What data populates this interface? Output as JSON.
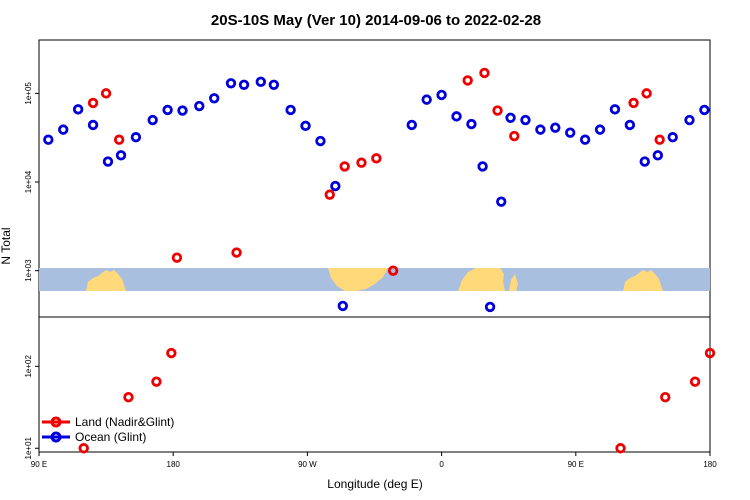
{
  "chart_data": {
    "type": "scatter",
    "title": "20S-10S May (Ver 10)   2014-09-06 to 2022-02-28",
    "xlabel": "Longitude (deg E)",
    "ylabel": "N Total",
    "xlim": [
      90,
      270
    ],
    "x_ticks": [
      {
        "value": 90,
        "label": "90 E"
      },
      {
        "value": 126,
        "label": "180"
      },
      {
        "value": 162,
        "label": "90 W"
      },
      {
        "value": 198,
        "label": "0"
      },
      {
        "value": 234,
        "label": "90 E"
      },
      {
        "value": 270,
        "label": "180"
      }
    ],
    "top_panel": {
      "scale": "log",
      "ylim": [
        300,
        400000
      ],
      "y_ticks": [
        {
          "value": 1000,
          "label": "1e+03"
        },
        {
          "value": 10000,
          "label": "1e+04"
        },
        {
          "value": 100000,
          "label": "1e+05"
        }
      ]
    },
    "bottom_panel": {
      "scale": "log",
      "ylim": [
        9,
        400
      ],
      "y_ticks": [
        {
          "value": 10,
          "label": "1e+01"
        },
        {
          "value": 100,
          "label": "1e+02"
        }
      ]
    },
    "legend": {
      "position": "bottom-left",
      "entries": [
        {
          "label": "Land (Nadir&Glint)",
          "color": "#ee0000"
        },
        {
          "label": "Ocean (Glint)",
          "color": "#0000dd"
        }
      ]
    },
    "colors": {
      "land": "#ee0000",
      "ocean": "#0000dd",
      "map_ocean": "#a8bfdf",
      "map_land": "#ffd97a"
    },
    "series": [
      {
        "name": "Land (Nadir&Glint)",
        "panel": "top",
        "points": [
          {
            "x": 104.5,
            "y": 78000
          },
          {
            "x": 108,
            "y": 100000
          },
          {
            "x": 111.5,
            "y": 30000
          },
          {
            "x": 127,
            "y": 1400
          },
          {
            "x": 143,
            "y": 1600
          },
          {
            "x": 168,
            "y": 7200
          },
          {
            "x": 172,
            "y": 15000
          },
          {
            "x": 176.5,
            "y": 16500
          },
          {
            "x": 180.5,
            "y": 18500
          },
          {
            "x": 185,
            "y": 1000
          },
          {
            "x": 205,
            "y": 140000
          },
          {
            "x": 209.5,
            "y": 170000
          },
          {
            "x": 213,
            "y": 64000
          },
          {
            "x": 217.5,
            "y": 33000
          },
          {
            "x": 249.5,
            "y": 78000
          },
          {
            "x": 253,
            "y": 100000
          },
          {
            "x": 256.5,
            "y": 30000
          }
        ]
      },
      {
        "name": "Ocean (Glint)",
        "panel": "top",
        "points": [
          {
            "x": 92.5,
            "y": 30000
          },
          {
            "x": 96.5,
            "y": 39000
          },
          {
            "x": 100.5,
            "y": 66000
          },
          {
            "x": 104.5,
            "y": 44000
          },
          {
            "x": 108.5,
            "y": 17000
          },
          {
            "x": 112,
            "y": 20000
          },
          {
            "x": 116,
            "y": 32000
          },
          {
            "x": 120.5,
            "y": 50000
          },
          {
            "x": 124.5,
            "y": 65000
          },
          {
            "x": 128.5,
            "y": 64000
          },
          {
            "x": 133,
            "y": 72000
          },
          {
            "x": 137,
            "y": 88000
          },
          {
            "x": 141.5,
            "y": 130000
          },
          {
            "x": 145,
            "y": 125000
          },
          {
            "x": 149.5,
            "y": 135000
          },
          {
            "x": 153,
            "y": 125000
          },
          {
            "x": 157.5,
            "y": 65000
          },
          {
            "x": 161.5,
            "y": 43000
          },
          {
            "x": 165.5,
            "y": 29000
          },
          {
            "x": 169.5,
            "y": 9000
          },
          {
            "x": 171.5,
            "y": 400
          },
          {
            "x": 190,
            "y": 44000
          },
          {
            "x": 194,
            "y": 85000
          },
          {
            "x": 198,
            "y": 96000
          },
          {
            "x": 202,
            "y": 55000
          },
          {
            "x": 206,
            "y": 45000
          },
          {
            "x": 209,
            "y": 15000
          },
          {
            "x": 211,
            "y": 390
          },
          {
            "x": 214,
            "y": 6000
          },
          {
            "x": 216.5,
            "y": 53000
          },
          {
            "x": 220.5,
            "y": 50000
          },
          {
            "x": 224.5,
            "y": 39000
          },
          {
            "x": 228.5,
            "y": 41000
          },
          {
            "x": 232.5,
            "y": 36000
          },
          {
            "x": 236.5,
            "y": 30000
          },
          {
            "x": 240.5,
            "y": 39000
          },
          {
            "x": 244.5,
            "y": 66000
          },
          {
            "x": 248.5,
            "y": 44000
          },
          {
            "x": 252.5,
            "y": 17000
          },
          {
            "x": 256,
            "y": 20000
          },
          {
            "x": 260,
            "y": 32000
          },
          {
            "x": 264.5,
            "y": 50000
          },
          {
            "x": 268.5,
            "y": 65000
          }
        ]
      },
      {
        "name": "Land (Nadir&Glint)",
        "panel": "bottom",
        "points": [
          {
            "x": 102,
            "y": 10
          },
          {
            "x": 114,
            "y": 42
          },
          {
            "x": 121.5,
            "y": 65
          },
          {
            "x": 125.5,
            "y": 145
          },
          {
            "x": 246,
            "y": 10
          },
          {
            "x": 258,
            "y": 42
          },
          {
            "x": 266,
            "y": 65
          },
          {
            "x": 270,
            "y": 145
          }
        ]
      }
    ]
  }
}
